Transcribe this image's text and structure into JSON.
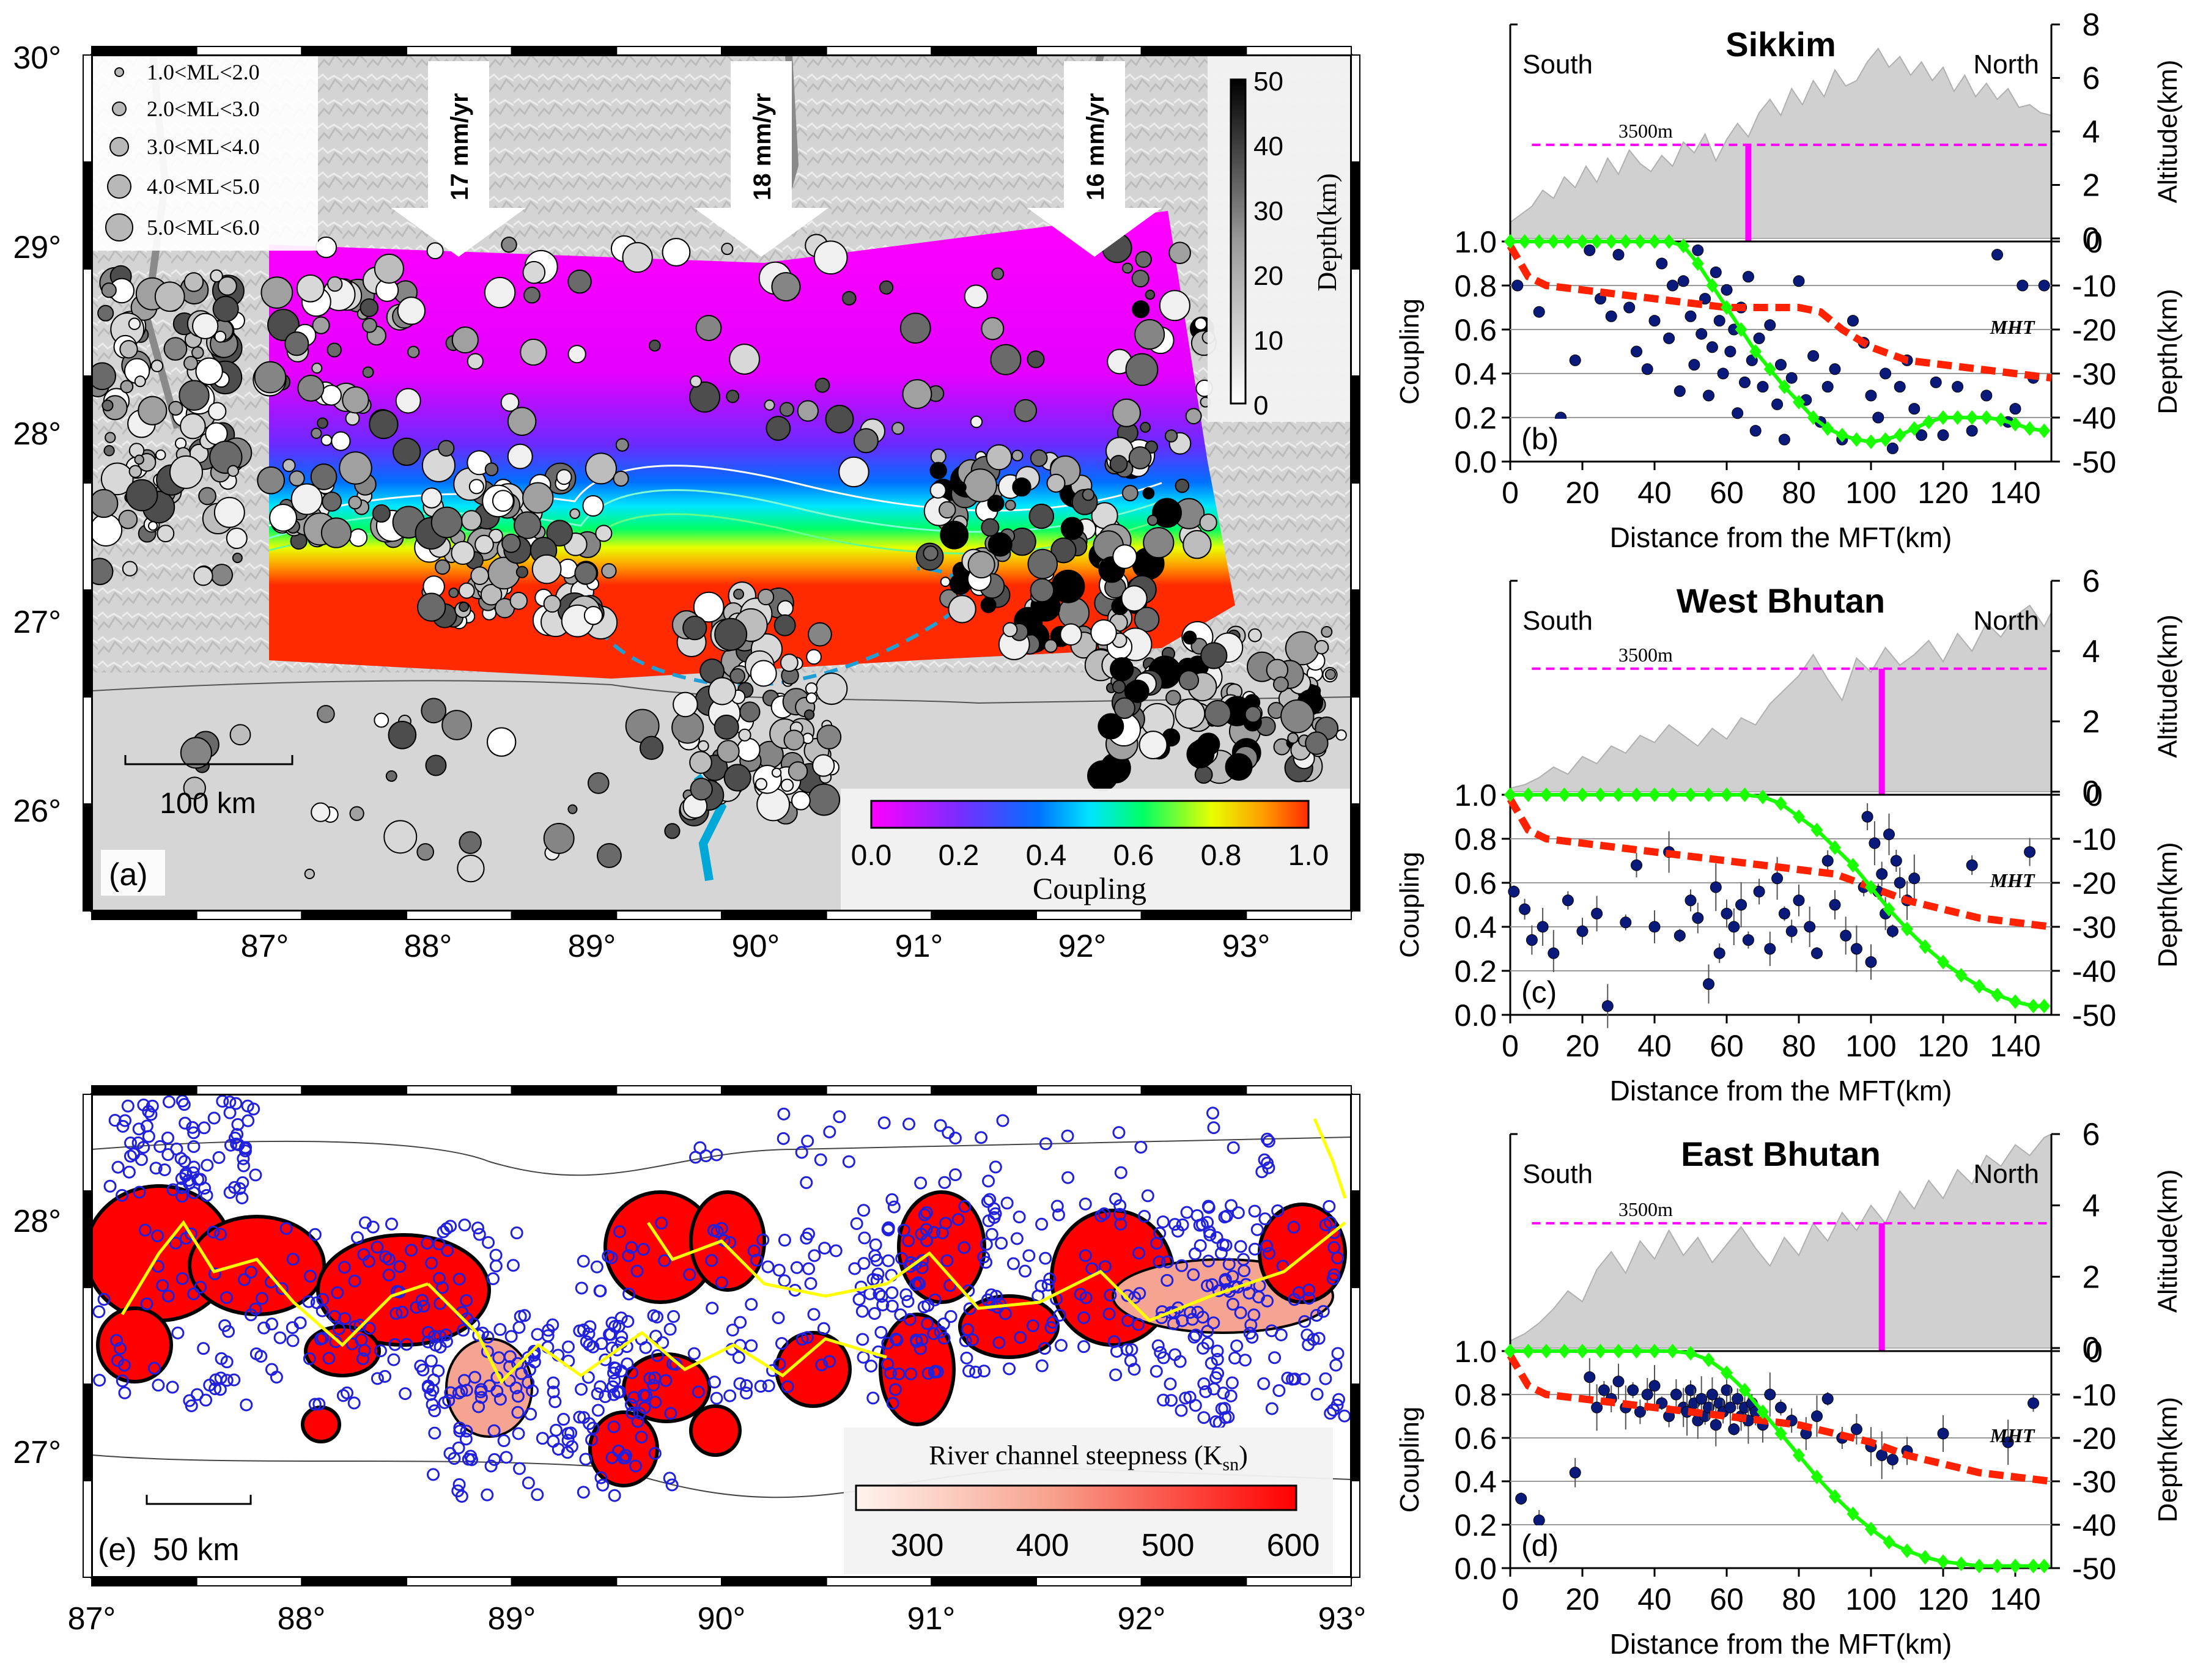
{
  "colors": {
    "coupling_low": "#ff00ff",
    "coupling_mid": "#00e5ff",
    "coupling_high": "#ff2a00",
    "eq_fill": "#b8b8b8",
    "relief_gray": "#d8d8d8",
    "dashed_region": "#1f9fd6",
    "magenta_line": "#ff00ff",
    "green_coupling": "#19ff00",
    "red_mht": "#ff2200",
    "navy_points": "#0a1a7a",
    "terrain": "#d0d0d0",
    "ksn_high": "#ff0000",
    "river_yellow": "#ffff00",
    "eq_circle_blue": "#2020dd"
  },
  "panel_a": {
    "label": "(a)",
    "lat_ticks": [
      "30°",
      "29°",
      "28°",
      "27°",
      "26°"
    ],
    "lon_ticks": [
      "87°",
      "88°",
      "89°",
      "90°",
      "91°",
      "92°",
      "93°"
    ],
    "magnitude_legend": [
      "1.0<ML<2.0",
      "2.0<ML<3.0",
      "3.0<ML<4.0",
      "4.0<ML<5.0",
      "5.0<ML<6.0"
    ],
    "velocity_labels": [
      "17 mm/yr",
      "18 mm/yr",
      "16 mm/yr"
    ],
    "scale_bar": "100 km",
    "depth_colorbar": {
      "title": "Depth(km)",
      "ticks": [
        "50",
        "40",
        "30",
        "20",
        "10",
        "0"
      ]
    },
    "coupling_colorbar": {
      "title": "Coupling",
      "ticks": [
        "0.0",
        "0.2",
        "0.4",
        "0.6",
        "0.8",
        "1.0"
      ]
    }
  },
  "panel_e": {
    "label": "(e)",
    "lat_ticks": [
      "28°",
      "27°"
    ],
    "lon_ticks": [
      "87°",
      "88°",
      "89°",
      "90°",
      "91°",
      "92°",
      "93°"
    ],
    "scale_bar": "50 km",
    "ksn_colorbar": {
      "title_main": "River channel steepness (K",
      "title_sub": "sn",
      "title_end": ")",
      "ticks": [
        "300",
        "400",
        "500",
        "600"
      ]
    }
  },
  "chart_data": [
    {
      "type": "line",
      "id": "b",
      "label": "(b)",
      "title": "Sikkim",
      "south_label": "South",
      "north_label": "North",
      "threshold_label": "3500m",
      "threshold_km": 3.5,
      "mht_label": "MHT",
      "xlabel": "Distance from the MFT(km)",
      "ylabel_left": "Coupling",
      "ylabel_right_top": "Altitude(km)",
      "ylabel_right_bottom": "Depth(km)",
      "xlim": [
        0,
        150
      ],
      "alt_lim": [
        0,
        8
      ],
      "alt_ticks": [
        "8",
        "6",
        "4",
        "2",
        "0"
      ],
      "coupling_lim": [
        0,
        1
      ],
      "coupling_ticks": [
        "1.0",
        "0.8",
        "0.6",
        "0.4",
        "0.2",
        "0.0"
      ],
      "depth_lim": [
        -50,
        0
      ],
      "depth_ticks": [
        "0",
        "-10",
        "-20",
        "-30",
        "-40",
        "-50"
      ],
      "x_ticks": [
        "0",
        "20",
        "40",
        "60",
        "80",
        "100",
        "120",
        "140"
      ],
      "transition_km": 66,
      "altitude_profile": {
        "x": [
          0,
          3,
          6,
          9,
          12,
          15,
          18,
          21,
          24,
          27,
          30,
          33,
          36,
          39,
          42,
          45,
          48,
          51,
          54,
          57,
          60,
          63,
          66,
          69,
          72,
          75,
          78,
          81,
          84,
          87,
          90,
          93,
          96,
          99,
          102,
          105,
          108,
          111,
          114,
          117,
          120,
          123,
          126,
          129,
          132,
          135,
          138,
          141,
          144,
          147,
          150
        ],
        "y": [
          0.6,
          0.9,
          1.2,
          1.8,
          1.5,
          2.3,
          1.9,
          2.7,
          2.1,
          3.0,
          2.4,
          3.3,
          2.8,
          2.5,
          3.1,
          2.7,
          3.6,
          3.2,
          3.9,
          2.9,
          3.7,
          4.3,
          3.8,
          4.7,
          5.2,
          4.6,
          5.6,
          5.0,
          5.9,
          5.3,
          6.3,
          5.7,
          5.9,
          6.6,
          7.1,
          6.4,
          6.8,
          6.1,
          6.6,
          5.9,
          6.4,
          5.5,
          6.1,
          5.3,
          5.8,
          5.2,
          5.6,
          4.9,
          5.0,
          4.7,
          4.6
        ]
      },
      "coupling_curve": {
        "x": [
          0,
          4,
          8,
          12,
          16,
          20,
          24,
          28,
          32,
          36,
          40,
          44,
          48,
          52,
          56,
          60,
          64,
          68,
          72,
          76,
          80,
          84,
          88,
          92,
          96,
          100,
          104,
          108,
          112,
          116,
          120,
          124,
          128,
          132,
          136,
          140,
          144,
          148
        ],
        "y": [
          1.0,
          1.0,
          1.0,
          1.0,
          1.0,
          1.0,
          1.0,
          1.0,
          1.0,
          1.0,
          1.0,
          1.0,
          0.98,
          0.9,
          0.8,
          0.7,
          0.6,
          0.5,
          0.42,
          0.34,
          0.27,
          0.2,
          0.15,
          0.12,
          0.1,
          0.09,
          0.1,
          0.12,
          0.15,
          0.18,
          0.2,
          0.2,
          0.2,
          0.2,
          0.19,
          0.17,
          0.15,
          0.14
        ]
      },
      "mht_depth": {
        "x": [
          0,
          5,
          10,
          20,
          30,
          40,
          50,
          60,
          70,
          80,
          86,
          92,
          100,
          110,
          120,
          130,
          140,
          150
        ],
        "y": [
          -1,
          -8,
          -10,
          -11,
          -12,
          -13,
          -14,
          -15,
          -15,
          -15,
          -16,
          -20,
          -24,
          -27,
          -28,
          -29,
          -30,
          -31
        ]
      },
      "seismicity": {
        "x": [
          2,
          8,
          14,
          18,
          22,
          25,
          28,
          30,
          33,
          35,
          38,
          40,
          42,
          44,
          45,
          47,
          48,
          50,
          51,
          52,
          53,
          54,
          55,
          56,
          57,
          58,
          59,
          60,
          61,
          62,
          63,
          64,
          65,
          66,
          67,
          68,
          69,
          70,
          72,
          74,
          75,
          76,
          78,
          80,
          82,
          84,
          86,
          88,
          90,
          92,
          95,
          98,
          100,
          102,
          104,
          106,
          108,
          110,
          112,
          114,
          118,
          120,
          124,
          128,
          132,
          135,
          138,
          140,
          142,
          145,
          148
        ],
        "y": [
          -10,
          -16,
          -40,
          -27,
          -2,
          -13,
          -17,
          -3,
          -15,
          -25,
          -29,
          -18,
          -5,
          -22,
          -10,
          -34,
          -9,
          -17,
          -28,
          -2,
          -21,
          -13,
          -35,
          -24,
          -7,
          -18,
          -30,
          -11,
          -25,
          -20,
          -39,
          -15,
          -32,
          -8,
          -27,
          -43,
          -22,
          -33,
          -19,
          -37,
          -28,
          -45,
          -31,
          -9,
          -36,
          -26,
          -41,
          -33,
          -29,
          -45,
          -18,
          -23,
          -35,
          -40,
          -30,
          -47,
          -33,
          -27,
          -38,
          -44,
          -32,
          -44,
          -33,
          -43,
          -35,
          -3,
          -41,
          -38,
          -10,
          -31,
          -10
        ]
      }
    },
    {
      "type": "line",
      "id": "c",
      "label": "(c)",
      "title": "West Bhutan",
      "south_label": "South",
      "north_label": "North",
      "threshold_label": "3500m",
      "threshold_km": 3.5,
      "mht_label": "MHT",
      "xlabel": "Distance from the MFT(km)",
      "ylabel_left": "Coupling",
      "ylabel_right_top": "Altitude(km)",
      "ylabel_right_bottom": "Depth(km)",
      "xlim": [
        0,
        150
      ],
      "alt_lim": [
        0,
        6
      ],
      "alt_ticks": [
        "6",
        "4",
        "2",
        "0"
      ],
      "coupling_lim": [
        0,
        1
      ],
      "coupling_ticks": [
        "1.0",
        "0.8",
        "0.6",
        "0.4",
        "0.2",
        "0.0"
      ],
      "depth_lim": [
        -50,
        0
      ],
      "depth_ticks": [
        "0",
        "-10",
        "-20",
        "-30",
        "-40",
        "-50"
      ],
      "x_ticks": [
        "0",
        "20",
        "40",
        "60",
        "80",
        "100",
        "120",
        "140"
      ],
      "transition_km": 103,
      "altitude_profile": {
        "x": [
          0,
          4,
          8,
          12,
          16,
          20,
          24,
          28,
          32,
          36,
          40,
          44,
          48,
          52,
          56,
          60,
          64,
          68,
          72,
          76,
          80,
          84,
          88,
          92,
          96,
          100,
          104,
          108,
          112,
          116,
          120,
          124,
          128,
          132,
          136,
          140,
          144,
          148,
          150
        ],
        "y": [
          0.1,
          0.2,
          0.4,
          0.7,
          0.5,
          1.0,
          0.8,
          1.3,
          1.1,
          1.6,
          1.4,
          1.9,
          1.6,
          1.3,
          1.8,
          1.5,
          2.1,
          1.9,
          2.5,
          2.9,
          3.3,
          3.9,
          3.2,
          2.6,
          3.8,
          3.4,
          4.1,
          3.6,
          3.9,
          4.3,
          3.7,
          4.5,
          4.0,
          4.8,
          4.4,
          5.0,
          5.3,
          4.7,
          5.1
        ]
      },
      "coupling_curve": {
        "x": [
          0,
          5,
          10,
          15,
          20,
          25,
          30,
          35,
          40,
          45,
          50,
          55,
          60,
          65,
          70,
          75,
          80,
          85,
          90,
          95,
          100,
          105,
          110,
          115,
          120,
          125,
          130,
          135,
          140,
          145,
          148
        ],
        "y": [
          1.0,
          1.0,
          1.0,
          1.0,
          1.0,
          1.0,
          1.0,
          1.0,
          1.0,
          1.0,
          1.0,
          1.0,
          1.0,
          1.0,
          0.99,
          0.96,
          0.9,
          0.84,
          0.76,
          0.68,
          0.58,
          0.48,
          0.39,
          0.31,
          0.24,
          0.18,
          0.13,
          0.09,
          0.06,
          0.04,
          0.04
        ]
      },
      "mht_depth": {
        "x": [
          0,
          5,
          10,
          20,
          30,
          40,
          50,
          60,
          70,
          80,
          90,
          100,
          110,
          120,
          130,
          140,
          150
        ],
        "y": [
          -1,
          -8,
          -10,
          -11,
          -12,
          -13,
          -14,
          -15,
          -16,
          -17,
          -18,
          -21,
          -24,
          -26,
          -28,
          -29,
          -30
        ]
      },
      "seismicity": {
        "x": [
          1,
          4,
          6,
          9,
          12,
          16,
          20,
          24,
          27,
          32,
          35,
          40,
          44,
          47,
          50,
          52,
          55,
          57,
          58,
          60,
          62,
          64,
          66,
          69,
          72,
          74,
          76,
          78,
          80,
          83,
          85,
          88,
          90,
          93,
          96,
          98,
          99,
          100,
          101,
          102,
          103,
          104,
          105,
          106,
          107,
          108,
          110,
          112,
          128,
          144
        ],
        "y": [
          -22,
          -26,
          -33,
          -30,
          -36,
          -24,
          -31,
          -27,
          -48,
          -29,
          -16,
          -30,
          -13,
          -32,
          -24,
          -28,
          -43,
          -21,
          -36,
          -27,
          -30,
          -25,
          -33,
          -22,
          -35,
          -19,
          -27,
          -31,
          -24,
          -30,
          -36,
          -15,
          -25,
          -32,
          -35,
          -21,
          -5,
          -38,
          -11,
          -22,
          -18,
          -27,
          -9,
          -31,
          -15,
          -20,
          -24,
          -19,
          -16,
          -13
        ]
      }
    },
    {
      "type": "line",
      "id": "d",
      "label": "(d)",
      "title": "East Bhutan",
      "south_label": "South",
      "north_label": "North",
      "threshold_label": "3500m",
      "threshold_km": 3.5,
      "mht_label": "MHT",
      "xlabel": "Distance from the MFT(km)",
      "ylabel_left": "Coupling",
      "ylabel_right_top": "Altitude(km)",
      "ylabel_right_bottom": "Depth(km)",
      "xlim": [
        0,
        150
      ],
      "alt_lim": [
        0,
        6
      ],
      "alt_ticks": [
        "6",
        "4",
        "2",
        "0"
      ],
      "coupling_lim": [
        0,
        1
      ],
      "coupling_ticks": [
        "1.0",
        "0.8",
        "0.6",
        "0.4",
        "0.2",
        "0.0"
      ],
      "depth_lim": [
        -50,
        0
      ],
      "depth_ticks": [
        "0",
        "-10",
        "-20",
        "-30",
        "-40",
        "-50"
      ],
      "x_ticks": [
        "0",
        "20",
        "40",
        "60",
        "80",
        "100",
        "120",
        "140"
      ],
      "transition_km": 103,
      "altitude_profile": {
        "x": [
          0,
          4,
          8,
          12,
          16,
          20,
          24,
          28,
          32,
          36,
          40,
          44,
          48,
          52,
          56,
          60,
          64,
          68,
          72,
          76,
          80,
          84,
          88,
          92,
          96,
          100,
          104,
          108,
          112,
          116,
          120,
          124,
          128,
          132,
          136,
          140,
          144,
          148,
          150
        ],
        "y": [
          0.2,
          0.4,
          0.7,
          1.1,
          1.6,
          1.3,
          2.2,
          2.7,
          2.1,
          3.0,
          2.5,
          3.3,
          2.6,
          3.1,
          2.4,
          2.9,
          3.4,
          2.8,
          2.3,
          3.1,
          2.6,
          3.5,
          3.0,
          3.8,
          3.3,
          4.0,
          3.5,
          4.4,
          3.9,
          4.7,
          4.2,
          5.0,
          4.6,
          5.4,
          5.1,
          5.7,
          5.4,
          5.9,
          6.0
        ]
      },
      "coupling_curve": {
        "x": [
          0,
          5,
          10,
          15,
          20,
          25,
          30,
          35,
          40,
          45,
          50,
          55,
          60,
          65,
          70,
          75,
          80,
          85,
          90,
          95,
          100,
          105,
          110,
          115,
          120,
          125,
          130,
          135,
          140,
          145,
          148
        ],
        "y": [
          1.0,
          1.0,
          1.0,
          1.0,
          1.0,
          1.0,
          1.0,
          1.0,
          1.0,
          1.0,
          0.99,
          0.96,
          0.9,
          0.82,
          0.72,
          0.62,
          0.52,
          0.42,
          0.33,
          0.25,
          0.18,
          0.12,
          0.08,
          0.05,
          0.03,
          0.02,
          0.01,
          0.01,
          0.01,
          0.01,
          0.01
        ]
      },
      "mht_depth": {
        "x": [
          0,
          5,
          10,
          20,
          30,
          40,
          50,
          60,
          70,
          80,
          90,
          100,
          110,
          120,
          130,
          140,
          150
        ],
        "y": [
          -1,
          -8,
          -10,
          -11,
          -12,
          -13,
          -14,
          -15,
          -16,
          -17,
          -19,
          -21,
          -24,
          -26,
          -28,
          -29,
          -30
        ]
      },
      "seismicity": {
        "x": [
          3,
          8,
          18,
          22,
          24,
          26,
          28,
          30,
          32,
          34,
          36,
          38,
          40,
          42,
          44,
          46,
          48,
          49,
          50,
          51,
          52,
          53,
          54,
          55,
          56,
          57,
          58,
          59,
          60,
          61,
          62,
          63,
          64,
          65,
          66,
          67,
          68,
          70,
          72,
          75,
          78,
          82,
          85,
          88,
          92,
          96,
          100,
          103,
          106,
          110,
          120,
          138,
          145
        ],
        "y": [
          -34,
          -39,
          -28,
          -6,
          -13,
          -9,
          -11,
          -7,
          -13,
          -9,
          -14,
          -10,
          -8,
          -12,
          -15,
          -10,
          -13,
          -14,
          -9,
          -12,
          -16,
          -11,
          -15,
          -13,
          -10,
          -17,
          -12,
          -14,
          -9,
          -13,
          -18,
          -11,
          -15,
          -13,
          -16,
          -12,
          -14,
          -17,
          -10,
          -13,
          -16,
          -19,
          -15,
          -11,
          -20,
          -18,
          -22,
          -24,
          -25,
          -23,
          -19,
          -21,
          -12
        ]
      }
    }
  ]
}
